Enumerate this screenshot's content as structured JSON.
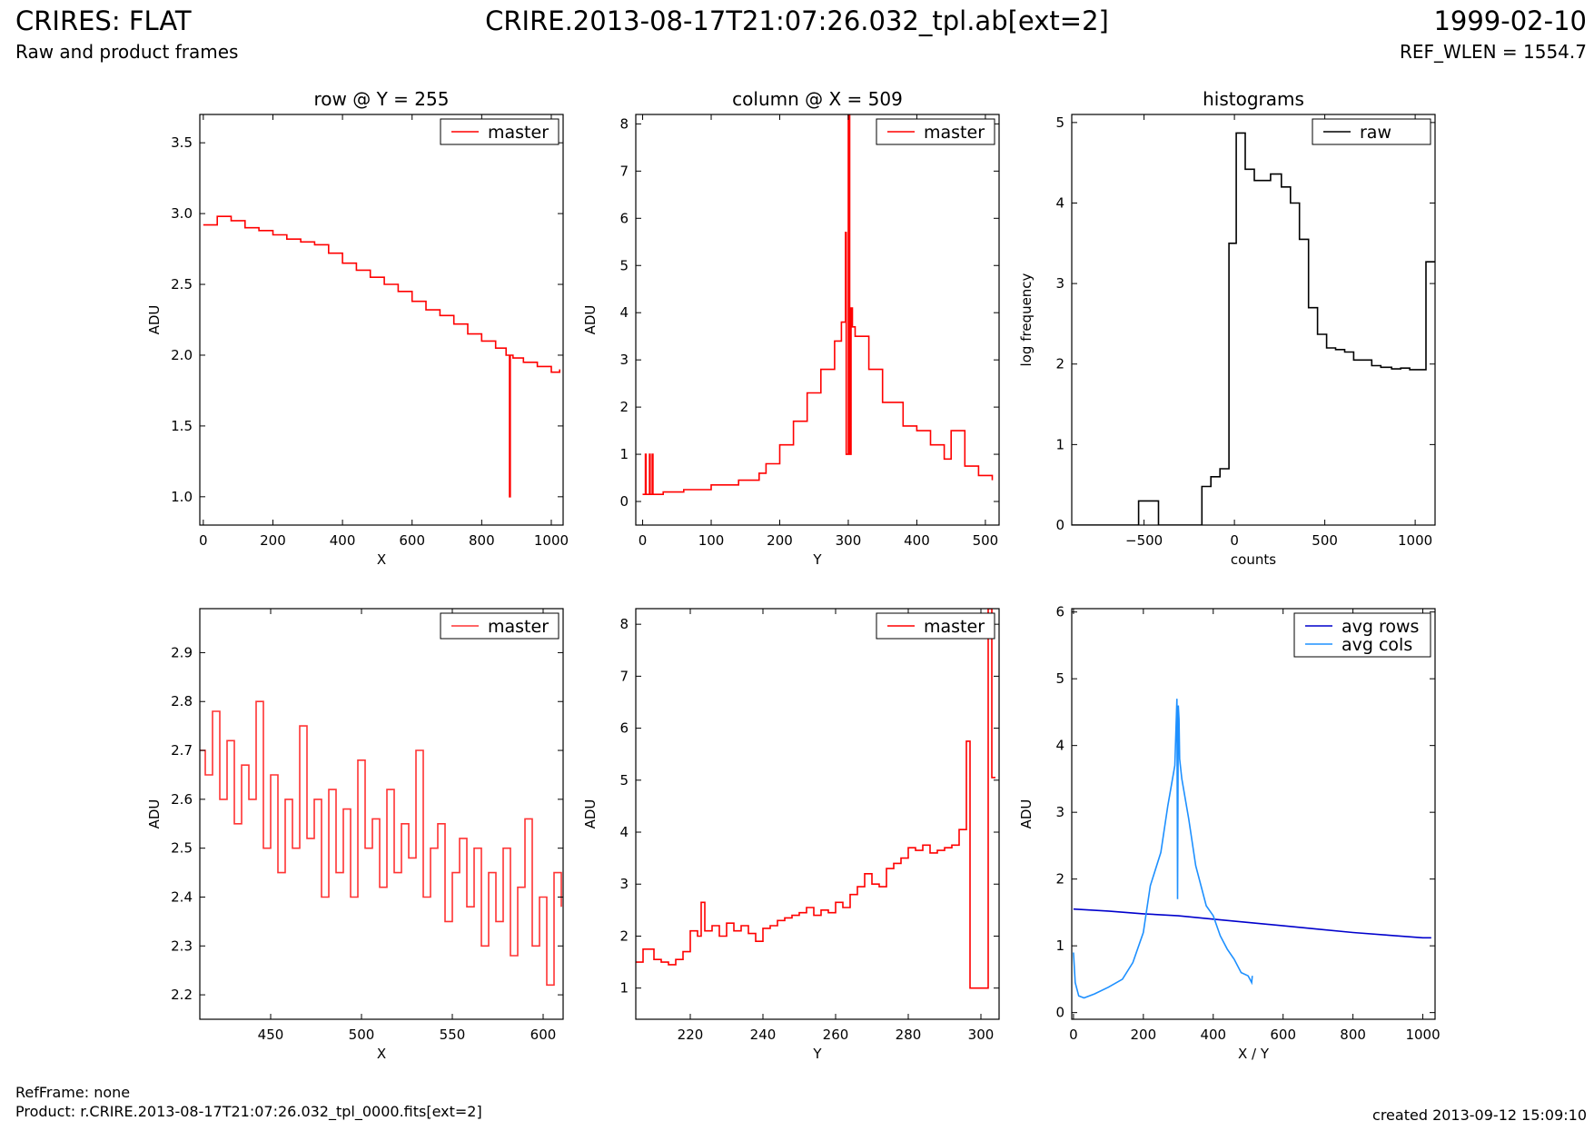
{
  "header": {
    "left_title": "CRIRES: FLAT",
    "left_subtitle": "Raw and product frames",
    "center_title": "CRIRE.2013-08-17T21:07:26.032_tpl.ab[ext=2]",
    "right_title": "1999-02-10",
    "right_subtitle": "REF_WLEN = 1554.7"
  },
  "footer": {
    "ref_frame": "RefFrame: none",
    "product": "Product: r.CRIRE.2013-08-17T21:07:26.032_tpl_0000.fits[ext=2]",
    "created": "created 2013-09-12 15:09:10"
  },
  "colors": {
    "master": "#ff0000",
    "raw": "#000000",
    "avg_rows": "#0000cc",
    "avg_cols": "#1e90ff"
  },
  "chart_data": [
    {
      "type": "line",
      "title": "row @ Y = 255",
      "xlabel": "X",
      "ylabel": "ADU",
      "xlim": [
        -10,
        1034
      ],
      "ylim": [
        0.8,
        3.7
      ],
      "xticks": [
        0,
        200,
        400,
        600,
        800,
        1000
      ],
      "yticks": [
        1.0,
        1.5,
        2.0,
        2.5,
        3.0,
        3.5
      ],
      "ytick_decimals": 1,
      "legend": "top-right",
      "series": [
        {
          "name": "master",
          "color": "#ff0000",
          "step": true,
          "x": [
            0,
            40,
            80,
            120,
            160,
            200,
            240,
            280,
            320,
            360,
            400,
            440,
            480,
            520,
            560,
            600,
            640,
            680,
            720,
            760,
            800,
            840,
            870,
            880,
            882,
            890,
            920,
            960,
            1000,
            1024
          ],
          "y": [
            2.92,
            2.98,
            2.95,
            2.9,
            2.88,
            2.85,
            2.82,
            2.8,
            2.78,
            2.72,
            2.65,
            2.6,
            2.55,
            2.5,
            2.45,
            2.38,
            2.32,
            2.28,
            2.22,
            2.15,
            2.1,
            2.05,
            2.0,
            1.0,
            2.0,
            1.98,
            1.95,
            1.92,
            1.88,
            1.9
          ]
        }
      ]
    },
    {
      "type": "line",
      "title": "column @ X = 509",
      "xlabel": "Y",
      "ylabel": "ADU",
      "xlim": [
        -10,
        520
      ],
      "ylim": [
        -0.5,
        8.2
      ],
      "xticks": [
        0,
        100,
        200,
        300,
        400,
        500
      ],
      "yticks": [
        0,
        1,
        2,
        3,
        4,
        5,
        6,
        7,
        8
      ],
      "ytick_decimals": 0,
      "legend": "top-right",
      "series": [
        {
          "name": "master",
          "color": "#ff0000",
          "step": true,
          "x": [
            0,
            4,
            5,
            10,
            11,
            14,
            15,
            30,
            60,
            100,
            140,
            170,
            180,
            200,
            220,
            240,
            260,
            280,
            290,
            296,
            297,
            298,
            300,
            302,
            304,
            306,
            310,
            330,
            350,
            380,
            400,
            420,
            440,
            450,
            470,
            490,
            510
          ],
          "y": [
            0.15,
            1.0,
            0.15,
            1.0,
            0.15,
            1.0,
            0.15,
            0.2,
            0.25,
            0.35,
            0.45,
            0.6,
            0.8,
            1.2,
            1.7,
            2.3,
            2.8,
            3.4,
            3.8,
            5.7,
            1.0,
            1.0,
            8.2,
            1.0,
            4.1,
            3.7,
            3.5,
            2.8,
            2.1,
            1.6,
            1.5,
            1.2,
            0.9,
            1.5,
            0.75,
            0.55,
            0.45
          ]
        }
      ]
    },
    {
      "type": "line",
      "title": "histograms",
      "xlabel": "counts",
      "ylabel": "log frequency",
      "xlim": [
        -900,
        1110
      ],
      "ylim": [
        0,
        5.1
      ],
      "xticks": [
        -500,
        0,
        500,
        1000
      ],
      "yticks": [
        0,
        1,
        2,
        3,
        4,
        5
      ],
      "ytick_decimals": 0,
      "legend": "top-right",
      "series": [
        {
          "name": "raw",
          "color": "#000000",
          "step": true,
          "x": [
            -900,
            -530,
            -420,
            -230,
            -180,
            -130,
            -80,
            -30,
            10,
            60,
            110,
            200,
            260,
            310,
            360,
            410,
            460,
            510,
            560,
            610,
            660,
            760,
            810,
            870,
            920,
            970,
            1060,
            1110
          ],
          "y": [
            0,
            0.3,
            0,
            0,
            0.48,
            0.6,
            0.7,
            3.5,
            4.87,
            4.42,
            4.28,
            4.36,
            4.2,
            4.0,
            3.55,
            2.7,
            2.37,
            2.2,
            2.18,
            2.15,
            2.05,
            1.98,
            1.96,
            1.94,
            1.95,
            1.93,
            3.27,
            3.27
          ]
        }
      ]
    },
    {
      "type": "line",
      "title": "",
      "xlabel": "X",
      "ylabel": "ADU",
      "xlim": [
        411,
        611
      ],
      "ylim": [
        2.15,
        2.99
      ],
      "xticks": [
        450,
        500,
        550,
        600
      ],
      "yticks": [
        2.2,
        2.3,
        2.4,
        2.5,
        2.6,
        2.7,
        2.8,
        2.9
      ],
      "ytick_decimals": 1,
      "legend": "top-right",
      "series": [
        {
          "name": "master",
          "color": "#ff3333",
          "step": true,
          "x": [
            411,
            414,
            418,
            422,
            426,
            430,
            434,
            438,
            442,
            446,
            450,
            454,
            458,
            462,
            466,
            470,
            474,
            478,
            482,
            486,
            490,
            494,
            498,
            502,
            506,
            510,
            514,
            518,
            522,
            526,
            530,
            534,
            538,
            542,
            546,
            550,
            554,
            558,
            562,
            566,
            570,
            574,
            578,
            582,
            586,
            590,
            594,
            598,
            602,
            606,
            610
          ],
          "y": [
            2.7,
            2.65,
            2.78,
            2.6,
            2.72,
            2.55,
            2.67,
            2.6,
            2.8,
            2.5,
            2.65,
            2.45,
            2.6,
            2.5,
            2.75,
            2.52,
            2.6,
            2.4,
            2.62,
            2.45,
            2.58,
            2.4,
            2.68,
            2.5,
            2.56,
            2.42,
            2.62,
            2.45,
            2.55,
            2.48,
            2.7,
            2.4,
            2.5,
            2.55,
            2.35,
            2.45,
            2.52,
            2.38,
            2.5,
            2.3,
            2.45,
            2.35,
            2.5,
            2.28,
            2.42,
            2.56,
            2.3,
            2.4,
            2.22,
            2.45,
            2.38
          ]
        }
      ]
    },
    {
      "type": "line",
      "title": "",
      "xlabel": "Y",
      "ylabel": "ADU",
      "xlim": [
        205,
        305
      ],
      "ylim": [
        0.4,
        8.3
      ],
      "xticks": [
        220,
        240,
        260,
        280,
        300
      ],
      "yticks": [
        1,
        2,
        3,
        4,
        5,
        6,
        7,
        8
      ],
      "ytick_decimals": 0,
      "legend": "top-right",
      "series": [
        {
          "name": "master",
          "color": "#ff0000",
          "step": true,
          "x": [
            205,
            207,
            210,
            212,
            214,
            216,
            218,
            220,
            222,
            223,
            224,
            226,
            228,
            230,
            232,
            234,
            236,
            238,
            240,
            242,
            244,
            246,
            248,
            250,
            252,
            254,
            256,
            258,
            260,
            262,
            264,
            266,
            268,
            270,
            272,
            274,
            276,
            278,
            280,
            282,
            284,
            286,
            288,
            290,
            292,
            294,
            296,
            297,
            300,
            302,
            303,
            304
          ],
          "y": [
            1.5,
            1.75,
            1.55,
            1.5,
            1.45,
            1.55,
            1.7,
            2.1,
            2.0,
            2.65,
            2.1,
            2.2,
            2.0,
            2.25,
            2.1,
            2.2,
            2.05,
            1.9,
            2.15,
            2.2,
            2.3,
            2.35,
            2.4,
            2.45,
            2.55,
            2.4,
            2.5,
            2.45,
            2.65,
            2.55,
            2.8,
            2.95,
            3.2,
            3.0,
            2.95,
            3.3,
            3.4,
            3.5,
            3.7,
            3.65,
            3.75,
            3.6,
            3.65,
            3.7,
            3.75,
            4.05,
            5.75,
            1.0,
            1.0,
            8.3,
            5.05,
            5.05
          ]
        }
      ]
    },
    {
      "type": "line",
      "title": "",
      "xlabel": "X / Y",
      "ylabel": "ADU",
      "xlim": [
        -5,
        1035
      ],
      "ylim": [
        -0.1,
        6.05
      ],
      "xticks": [
        0,
        200,
        400,
        600,
        800,
        1000
      ],
      "yticks": [
        0,
        1,
        2,
        3,
        4,
        5,
        6
      ],
      "ytick_decimals": 0,
      "legend": "top-right",
      "series": [
        {
          "name": "avg rows",
          "color": "#0000cc",
          "step": false,
          "x": [
            0,
            100,
            200,
            300,
            400,
            500,
            600,
            700,
            800,
            900,
            1000,
            1024
          ],
          "y": [
            1.55,
            1.52,
            1.48,
            1.45,
            1.4,
            1.35,
            1.3,
            1.25,
            1.2,
            1.16,
            1.12,
            1.12
          ]
        },
        {
          "name": "avg cols",
          "color": "#1e90ff",
          "step": false,
          "x": [
            0,
            5,
            15,
            30,
            60,
            100,
            140,
            170,
            200,
            220,
            250,
            270,
            290,
            296,
            298,
            300,
            302,
            304,
            310,
            330,
            350,
            380,
            400,
            420,
            440,
            460,
            480,
            500,
            510,
            512
          ],
          "y": [
            0.9,
            0.45,
            0.25,
            0.22,
            0.28,
            0.38,
            0.5,
            0.75,
            1.2,
            1.9,
            2.4,
            3.1,
            3.7,
            4.7,
            1.7,
            4.6,
            4.4,
            3.8,
            3.5,
            2.9,
            2.2,
            1.6,
            1.45,
            1.15,
            0.95,
            0.8,
            0.6,
            0.55,
            0.45,
            0.55
          ]
        }
      ]
    }
  ]
}
